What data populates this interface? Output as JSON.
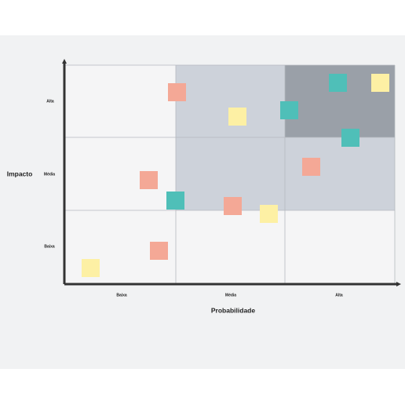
{
  "y_axis": {
    "title": "Impacto",
    "labels": [
      "Alta",
      "Média",
      "Baixa"
    ]
  },
  "x_axis": {
    "title": "Probabilidade",
    "labels": [
      "Baixa",
      "Média",
      "Alta"
    ]
  }
}
